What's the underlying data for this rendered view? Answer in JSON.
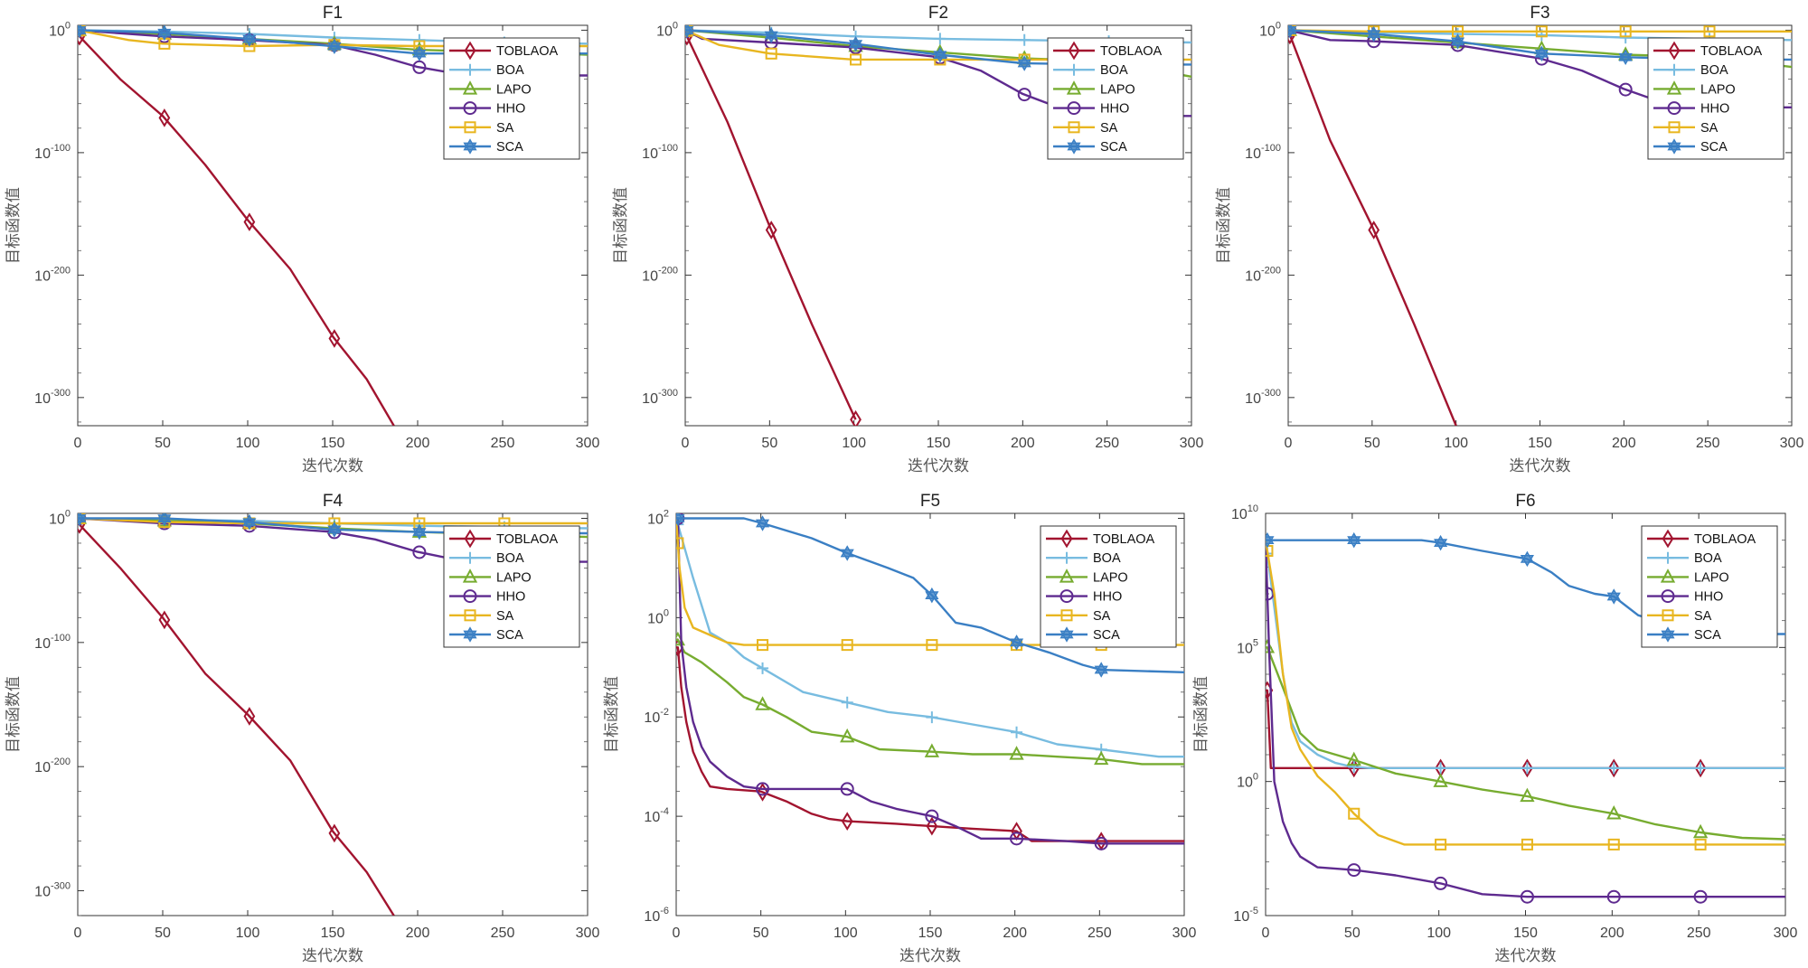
{
  "chart_data": [
    {
      "type": "line",
      "title": "F1",
      "xlabel": "迭代次数",
      "ylabel": "目标函数值",
      "yscale": "log",
      "xlim": [
        0,
        300
      ],
      "ylim_exp": [
        -323,
        4
      ],
      "xticks": [
        0,
        50,
        100,
        150,
        200,
        250,
        300
      ],
      "yticks_exp": [
        0,
        -100,
        -200,
        -300
      ],
      "legend": "top-right",
      "series": [
        {
          "name": "TOBLAOA",
          "x": [
            0,
            1,
            25,
            50,
            75,
            100,
            125,
            150,
            170,
            186
          ],
          "log10_y": [
            0,
            -5,
            -40,
            -70,
            -110,
            -155,
            -195,
            -250,
            -285,
            -323
          ]
        },
        {
          "name": "BOA",
          "x": [
            0,
            50,
            100,
            150,
            200,
            250,
            300
          ],
          "log10_y": [
            0,
            -1,
            -3,
            -6,
            -8,
            -10,
            -11
          ]
        },
        {
          "name": "LAPO",
          "x": [
            0,
            50,
            100,
            150,
            200,
            250,
            300
          ],
          "log10_y": [
            0,
            -3,
            -7,
            -11,
            -16,
            -18,
            -20
          ]
        },
        {
          "name": "HHO",
          "x": [
            0,
            50,
            100,
            150,
            175,
            200,
            225,
            250,
            300
          ],
          "log10_y": [
            0,
            -5,
            -8,
            -12,
            -20,
            -30,
            -36,
            -37,
            -37
          ]
        },
        {
          "name": "SA",
          "x": [
            0,
            30,
            50,
            100,
            150,
            200,
            250,
            300
          ],
          "log10_y": [
            0,
            -8,
            -11,
            -13,
            -12,
            -13,
            -13,
            -13
          ]
        },
        {
          "name": "SCA",
          "x": [
            0,
            50,
            100,
            150,
            200,
            250,
            300
          ],
          "log10_y": [
            0,
            -2,
            -7,
            -13,
            -19,
            -19,
            -19
          ]
        }
      ]
    },
    {
      "type": "line",
      "title": "F2",
      "xlabel": "迭代次数",
      "ylabel": "目标函数值",
      "yscale": "log",
      "xlim": [
        0,
        300
      ],
      "ylim_exp": [
        -323,
        4
      ],
      "xticks": [
        0,
        50,
        100,
        150,
        200,
        250,
        300
      ],
      "yticks_exp": [
        0,
        -100,
        -200,
        -300
      ],
      "legend": "top-right",
      "series": [
        {
          "name": "TOBLAOA",
          "x": [
            0,
            1,
            25,
            50,
            75,
            101
          ],
          "log10_y": [
            0,
            -5,
            -75,
            -160,
            -240,
            -318
          ]
        },
        {
          "name": "BOA",
          "x": [
            0,
            50,
            100,
            150,
            200,
            250,
            300
          ],
          "log10_y": [
            0,
            -2,
            -5,
            -7,
            -8,
            -9,
            -10
          ]
        },
        {
          "name": "LAPO",
          "x": [
            0,
            50,
            100,
            150,
            200,
            250,
            300
          ],
          "log10_y": [
            0,
            -6,
            -13,
            -18,
            -23,
            -25,
            -38
          ]
        },
        {
          "name": "HHO",
          "x": [
            0,
            10,
            50,
            100,
            150,
            175,
            200,
            225,
            250,
            300
          ],
          "log10_y": [
            0,
            -7,
            -10,
            -14,
            -22,
            -33,
            -52,
            -65,
            -70,
            -70
          ]
        },
        {
          "name": "SA",
          "x": [
            0,
            20,
            50,
            100,
            150,
            200,
            250,
            300
          ],
          "log10_y": [
            0,
            -12,
            -19,
            -24,
            -24,
            -24,
            -24,
            -24
          ]
        },
        {
          "name": "SCA",
          "x": [
            0,
            50,
            100,
            150,
            200,
            250,
            300
          ],
          "log10_y": [
            0,
            -4,
            -11,
            -20,
            -27,
            -28,
            -28
          ]
        }
      ]
    },
    {
      "type": "line",
      "title": "F3",
      "xlabel": "迭代次数",
      "ylabel": "目标函数值",
      "yscale": "log",
      "xlim": [
        0,
        300
      ],
      "ylim_exp": [
        -323,
        4
      ],
      "xticks": [
        0,
        50,
        100,
        150,
        200,
        250,
        300
      ],
      "yticks_exp": [
        0,
        -100,
        -200,
        -300
      ],
      "legend": "top-right",
      "series": [
        {
          "name": "TOBLAOA",
          "x": [
            0,
            1,
            25,
            50,
            75,
            100
          ],
          "log10_y": [
            0,
            -4,
            -90,
            -160,
            -240,
            -323
          ]
        },
        {
          "name": "BOA",
          "x": [
            0,
            50,
            100,
            150,
            200,
            250,
            300
          ],
          "log10_y": [
            0,
            -2,
            -3,
            -4,
            -6,
            -7,
            -8
          ]
        },
        {
          "name": "LAPO",
          "x": [
            0,
            50,
            100,
            150,
            200,
            250,
            300
          ],
          "log10_y": [
            0,
            -5,
            -10,
            -15,
            -20,
            -22,
            -30
          ]
        },
        {
          "name": "HHO",
          "x": [
            0,
            25,
            50,
            100,
            150,
            175,
            200,
            225,
            250,
            300
          ],
          "log10_y": [
            0,
            -8,
            -9,
            -12,
            -23,
            -33,
            -48,
            -60,
            -63,
            -63
          ]
        },
        {
          "name": "SA",
          "x": [
            0,
            50,
            100,
            150,
            200,
            250,
            300
          ],
          "log10_y": [
            0,
            -1,
            -1,
            -1,
            -1,
            -1,
            -1
          ]
        },
        {
          "name": "SCA",
          "x": [
            0,
            50,
            100,
            150,
            200,
            250,
            300
          ],
          "log10_y": [
            0,
            -3,
            -9,
            -19,
            -22,
            -24,
            -24
          ]
        }
      ]
    },
    {
      "type": "line",
      "title": "F4",
      "xlabel": "迭代次数",
      "ylabel": "目标函数值",
      "yscale": "log",
      "xlim": [
        0,
        300
      ],
      "ylim_exp": [
        -320,
        4
      ],
      "xticks": [
        0,
        50,
        100,
        150,
        200,
        250,
        300
      ],
      "yticks_exp": [
        0,
        -100,
        -200,
        -300
      ],
      "legend": "top-right",
      "series": [
        {
          "name": "TOBLAOA",
          "x": [
            0,
            1,
            25,
            50,
            75,
            100,
            125,
            150,
            170,
            186
          ],
          "log10_y": [
            0,
            -5,
            -40,
            -80,
            -125,
            -158,
            -195,
            -252,
            -285,
            -320
          ]
        },
        {
          "name": "BOA",
          "x": [
            0,
            50,
            100,
            150,
            200,
            250,
            300
          ],
          "log10_y": [
            0,
            -1,
            -2,
            -4,
            -6,
            -7,
            -8
          ]
        },
        {
          "name": "LAPO",
          "x": [
            0,
            50,
            100,
            150,
            200,
            250,
            300
          ],
          "log10_y": [
            0,
            -2,
            -4,
            -8,
            -11,
            -13,
            -15
          ]
        },
        {
          "name": "HHO",
          "x": [
            0,
            50,
            100,
            150,
            175,
            200,
            225,
            250,
            300
          ],
          "log10_y": [
            0,
            -4,
            -6,
            -11,
            -17,
            -27,
            -34,
            -35,
            -35
          ]
        },
        {
          "name": "SA",
          "x": [
            0,
            50,
            100,
            150,
            200,
            250,
            300
          ],
          "log10_y": [
            0,
            -3,
            -4,
            -4,
            -4,
            -4,
            -4
          ]
        },
        {
          "name": "SCA",
          "x": [
            0,
            50,
            100,
            150,
            200,
            250,
            300
          ],
          "log10_y": [
            0,
            0,
            -3,
            -9,
            -11,
            -12,
            -12
          ]
        }
      ]
    },
    {
      "type": "line",
      "title": "F5",
      "xlabel": "迭代次数",
      "ylabel": "目标函数值",
      "yscale": "log",
      "xlim": [
        0,
        300
      ],
      "ylim_exp": [
        -6,
        2.1
      ],
      "xticks": [
        0,
        50,
        100,
        150,
        200,
        250,
        300
      ],
      "yticks_exp": [
        2,
        0,
        -2,
        -4,
        -6
      ],
      "legend": "top-right",
      "series": [
        {
          "name": "TOBLAOA",
          "x": [
            0,
            1,
            3,
            6,
            10,
            15,
            20,
            30,
            50,
            65,
            80,
            90,
            101,
            130,
            151,
            175,
            201,
            210,
            250,
            300
          ],
          "log10_y": [
            -0.6,
            -0.6,
            -1.4,
            -2.1,
            -2.7,
            -3.1,
            -3.4,
            -3.45,
            -3.5,
            -3.7,
            -3.95,
            -4.05,
            -4.1,
            -4.15,
            -4.2,
            -4.25,
            -4.3,
            -4.5,
            -4.5,
            -4.5
          ]
        },
        {
          "name": "BOA",
          "x": [
            0,
            10,
            20,
            30,
            40,
            50,
            75,
            100,
            125,
            150,
            175,
            200,
            225,
            250,
            285,
            300
          ],
          "log10_y": [
            2,
            0.8,
            -0.3,
            -0.5,
            -0.8,
            -1.0,
            -1.5,
            -1.7,
            -1.9,
            -2.0,
            -2.15,
            -2.3,
            -2.55,
            -2.65,
            -2.8,
            -2.8
          ]
        },
        {
          "name": "LAPO",
          "x": [
            0,
            1,
            5,
            15,
            30,
            40,
            51,
            65,
            80,
            101,
            120,
            151,
            175,
            201,
            225,
            251,
            275,
            300
          ],
          "log10_y": [
            -0.45,
            -0.45,
            -0.7,
            -0.9,
            -1.3,
            -1.6,
            -1.75,
            -2.0,
            -2.3,
            -2.4,
            -2.65,
            -2.7,
            -2.75,
            -2.75,
            -2.8,
            -2.85,
            -2.95,
            -2.95
          ]
        },
        {
          "name": "HHO",
          "x": [
            0,
            1,
            3,
            6,
            10,
            15,
            20,
            30,
            40,
            51,
            101,
            115,
            130,
            151,
            165,
            180,
            201,
            230,
            251,
            300
          ],
          "log10_y": [
            2,
            2,
            -0.5,
            -1.4,
            -2.1,
            -2.6,
            -2.9,
            -3.2,
            -3.4,
            -3.45,
            -3.45,
            -3.7,
            -3.85,
            -4.0,
            -4.2,
            -4.45,
            -4.45,
            -4.5,
            -4.55,
            -4.55
          ]
        },
        {
          "name": "SA",
          "x": [
            0,
            2,
            5,
            10,
            20,
            30,
            40,
            51,
            300
          ],
          "log10_y": [
            2,
            1,
            0.2,
            -0.2,
            -0.35,
            -0.5,
            -0.55,
            -0.55,
            -0.55
          ]
        },
        {
          "name": "SCA",
          "x": [
            0,
            40,
            51,
            80,
            101,
            125,
            140,
            151,
            165,
            180,
            201,
            220,
            240,
            251,
            300
          ],
          "log10_y": [
            2,
            2,
            1.9,
            1.6,
            1.3,
            1.0,
            0.8,
            0.45,
            -0.1,
            -0.2,
            -0.5,
            -0.7,
            -0.95,
            -1.05,
            -1.1
          ]
        }
      ]
    },
    {
      "type": "line",
      "title": "F6",
      "xlabel": "迭代次数",
      "ylabel": "目标函数值",
      "yscale": "log",
      "xlim": [
        0,
        300
      ],
      "ylim_exp": [
        -5,
        10
      ],
      "xticks": [
        0,
        50,
        100,
        150,
        200,
        250,
        300
      ],
      "yticks_exp": [
        10,
        5,
        0
      ],
      "yticks_exp_bottom": -5,
      "legend": "top-right",
      "series": [
        {
          "name": "TOBLAOA",
          "x": [
            0,
            1,
            3,
            51,
            101,
            151,
            201,
            251,
            300
          ],
          "log10_y": [
            3.4,
            3.4,
            0.5,
            0.5,
            0.5,
            0.5,
            0.5,
            0.5,
            0.5
          ]
        },
        {
          "name": "BOA",
          "x": [
            0,
            5,
            10,
            15,
            20,
            30,
            40,
            50,
            60,
            100,
            200,
            300
          ],
          "log10_y": [
            9,
            6.5,
            4,
            2.2,
            1.5,
            1.0,
            0.7,
            0.55,
            0.5,
            0.5,
            0.5,
            0.5
          ]
        },
        {
          "name": "LAPO",
          "x": [
            0,
            1,
            10,
            20,
            30,
            51,
            75,
            101,
            125,
            151,
            175,
            201,
            225,
            251,
            275,
            300
          ],
          "log10_y": [
            5,
            5,
            3.5,
            1.8,
            1.2,
            0.8,
            0.3,
            0,
            -0.3,
            -0.55,
            -0.9,
            -1.2,
            -1.6,
            -1.9,
            -2.1,
            -2.15
          ]
        },
        {
          "name": "HHO",
          "x": [
            0,
            2,
            5,
            10,
            15,
            20,
            30,
            51,
            75,
            101,
            125,
            151,
            201,
            251,
            300
          ],
          "log10_y": [
            9,
            5,
            0,
            -1.5,
            -2.3,
            -2.8,
            -3.2,
            -3.3,
            -3.5,
            -3.8,
            -4.2,
            -4.3,
            -4.3,
            -4.3,
            -4.3
          ]
        },
        {
          "name": "SA",
          "x": [
            0,
            5,
            10,
            15,
            20,
            30,
            40,
            51,
            65,
            80,
            101,
            151,
            201,
            251,
            300
          ],
          "log10_y": [
            9,
            7,
            4,
            2,
            1.2,
            0.2,
            -0.4,
            -1.2,
            -2.0,
            -2.35,
            -2.35,
            -2.35,
            -2.35,
            -2.35,
            -2.35
          ]
        },
        {
          "name": "SCA",
          "x": [
            0,
            1,
            51,
            90,
            101,
            125,
            151,
            165,
            175,
            190,
            201,
            215,
            250,
            300
          ],
          "log10_y": [
            9,
            9,
            9,
            9,
            8.9,
            8.6,
            8.3,
            7.8,
            7.3,
            7.0,
            6.9,
            6.2,
            5.5,
            5.5
          ]
        }
      ]
    }
  ],
  "legend_entries": [
    "TOBLAOA",
    "BOA",
    "LAPO",
    "HHO",
    "SA",
    "SCA"
  ],
  "series_style": {
    "TOBLAOA": {
      "color": "#a2142f",
      "marker": "diamond"
    },
    "BOA": {
      "color": "#78bce0",
      "marker": "plus"
    },
    "LAPO": {
      "color": "#77ac30",
      "marker": "triangle"
    },
    "HHO": {
      "color": "#5e2a8f",
      "marker": "circle"
    },
    "SA": {
      "color": "#e8b620",
      "marker": "square"
    },
    "SCA": {
      "color": "#3a7fc4",
      "marker": "hexagram"
    }
  }
}
